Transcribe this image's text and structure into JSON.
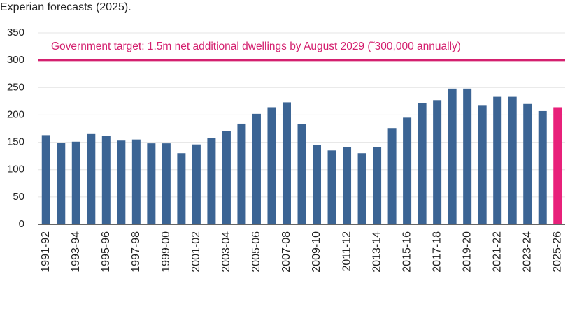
{
  "chart_data": {
    "type": "bar",
    "subtitle": "Experian forecasts (2025).",
    "categories": [
      "1991-92",
      null,
      "1993-94",
      null,
      "1995-96",
      null,
      "1997-98",
      null,
      "1999-00",
      null,
      "2001-02",
      null,
      "2003-04",
      null,
      "2005-06",
      null,
      "2007-08",
      null,
      "2009-10",
      null,
      "2011-12",
      null,
      "2013-14",
      null,
      "2015-16",
      null,
      "2017-18",
      null,
      "2019-20",
      null,
      "2021-22",
      null,
      "2023-24",
      null,
      "2025-26"
    ],
    "values": [
      163,
      149,
      151,
      165,
      162,
      153,
      155,
      148,
      148,
      130,
      146,
      158,
      171,
      184,
      202,
      214,
      223,
      183,
      145,
      135,
      141,
      130,
      141,
      176,
      195,
      221,
      227,
      248,
      248,
      218,
      233,
      233,
      220,
      207,
      214
    ],
    "colors": [
      "#3b6494",
      "#3b6494",
      "#3b6494",
      "#3b6494",
      "#3b6494",
      "#3b6494",
      "#3b6494",
      "#3b6494",
      "#3b6494",
      "#3b6494",
      "#3b6494",
      "#3b6494",
      "#3b6494",
      "#3b6494",
      "#3b6494",
      "#3b6494",
      "#3b6494",
      "#3b6494",
      "#3b6494",
      "#3b6494",
      "#3b6494",
      "#3b6494",
      "#3b6494",
      "#3b6494",
      "#3b6494",
      "#3b6494",
      "#3b6494",
      "#3b6494",
      "#3b6494",
      "#3b6494",
      "#3b6494",
      "#3b6494",
      "#3b6494",
      "#3b6494",
      "#e8207a"
    ],
    "reference_line": {
      "value": 300,
      "label": "Government target: 1.5m net additional dwellings by August 2029 (˜300,000 annually)",
      "color": "#d4206f"
    },
    "ylim": [
      0,
      350
    ],
    "yticks": [
      0,
      50,
      100,
      150,
      200,
      250,
      300,
      350
    ],
    "grid": true
  }
}
